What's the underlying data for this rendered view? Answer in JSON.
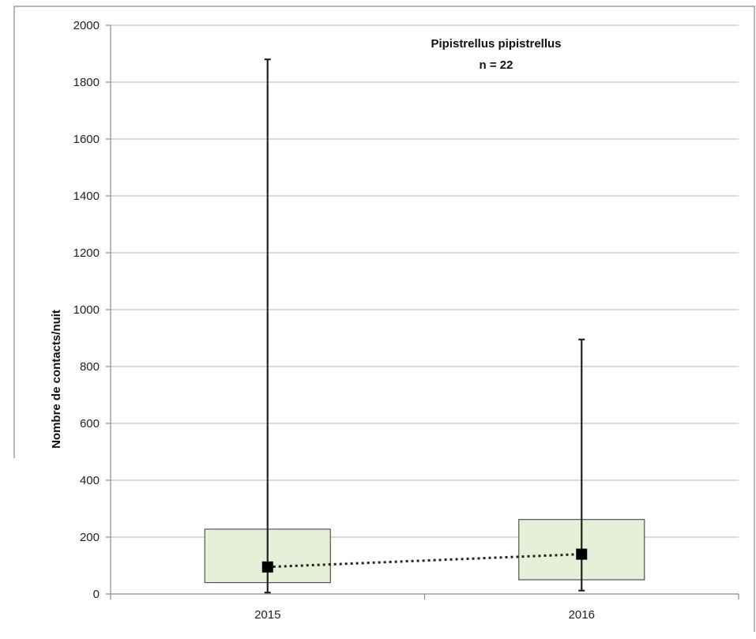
{
  "chart_data": {
    "type": "box",
    "title": "Pipistrellus pipistrellus",
    "subtitle": "n = 22",
    "xlabel": "",
    "ylabel": "Nombre de contacts/nuit",
    "ylim": [
      0,
      2000
    ],
    "yticks": [
      0,
      200,
      400,
      600,
      800,
      1000,
      1200,
      1400,
      1600,
      1800,
      2000
    ],
    "grid": true,
    "categories": [
      "2015",
      "2016"
    ],
    "boxes": [
      {
        "category": "2015",
        "min": 5,
        "q1": 40,
        "median": 95,
        "q3": 228,
        "max": 1880
      },
      {
        "category": "2016",
        "min": 12,
        "q1": 50,
        "median": 140,
        "q3": 262,
        "max": 895
      }
    ],
    "marker_line_style": "dotted",
    "colors": {
      "box_fill": "#e6efd7",
      "box_stroke": "#555555",
      "marker": "#000000",
      "grid": "#b3b3b3"
    }
  }
}
